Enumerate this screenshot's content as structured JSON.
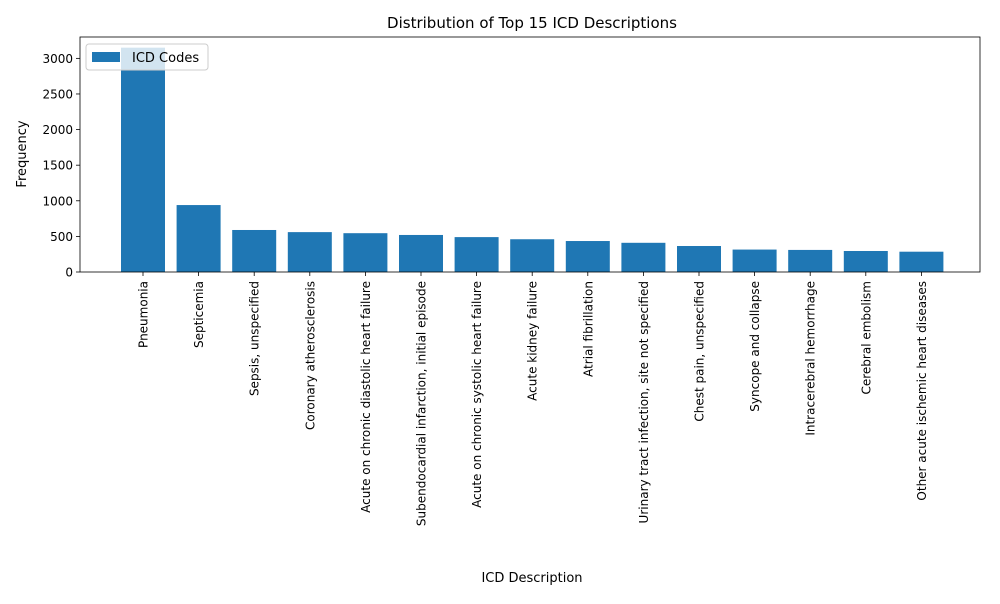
{
  "chart_data": {
    "type": "bar",
    "title": "Distribution of Top 15 ICD Descriptions",
    "xlabel": "ICD Description",
    "ylabel": "Frequency",
    "ylim": [
      0,
      3300
    ],
    "yticks": [
      0,
      500,
      1000,
      1500,
      2000,
      2500,
      3000
    ],
    "grid": false,
    "legend": {
      "position": "top-left",
      "entries": [
        "ICD Codes"
      ]
    },
    "bar_color": "#1f77b4",
    "categories": [
      "Pneumonia",
      "Septicemia",
      "Sepsis, unspecified",
      "Coronary atherosclerosis",
      "Acute on chronic diastolic heart failure",
      "Subendocardial infarction, initial episode",
      "Acute on chronic systolic heart failure",
      "Acute kidney failure",
      "Atrial fibrillation",
      "Urinary tract infection, site not specified",
      "Chest pain, unspecified",
      "Syncope and collapse",
      "Intracerebral hemorrhage",
      "Cerebral embolism",
      "Other acute ischemic heart diseases"
    ],
    "series": [
      {
        "name": "ICD Codes",
        "values": [
          3150,
          940,
          590,
          560,
          545,
          520,
          490,
          460,
          435,
          410,
          365,
          315,
          310,
          295,
          285
        ]
      }
    ]
  }
}
